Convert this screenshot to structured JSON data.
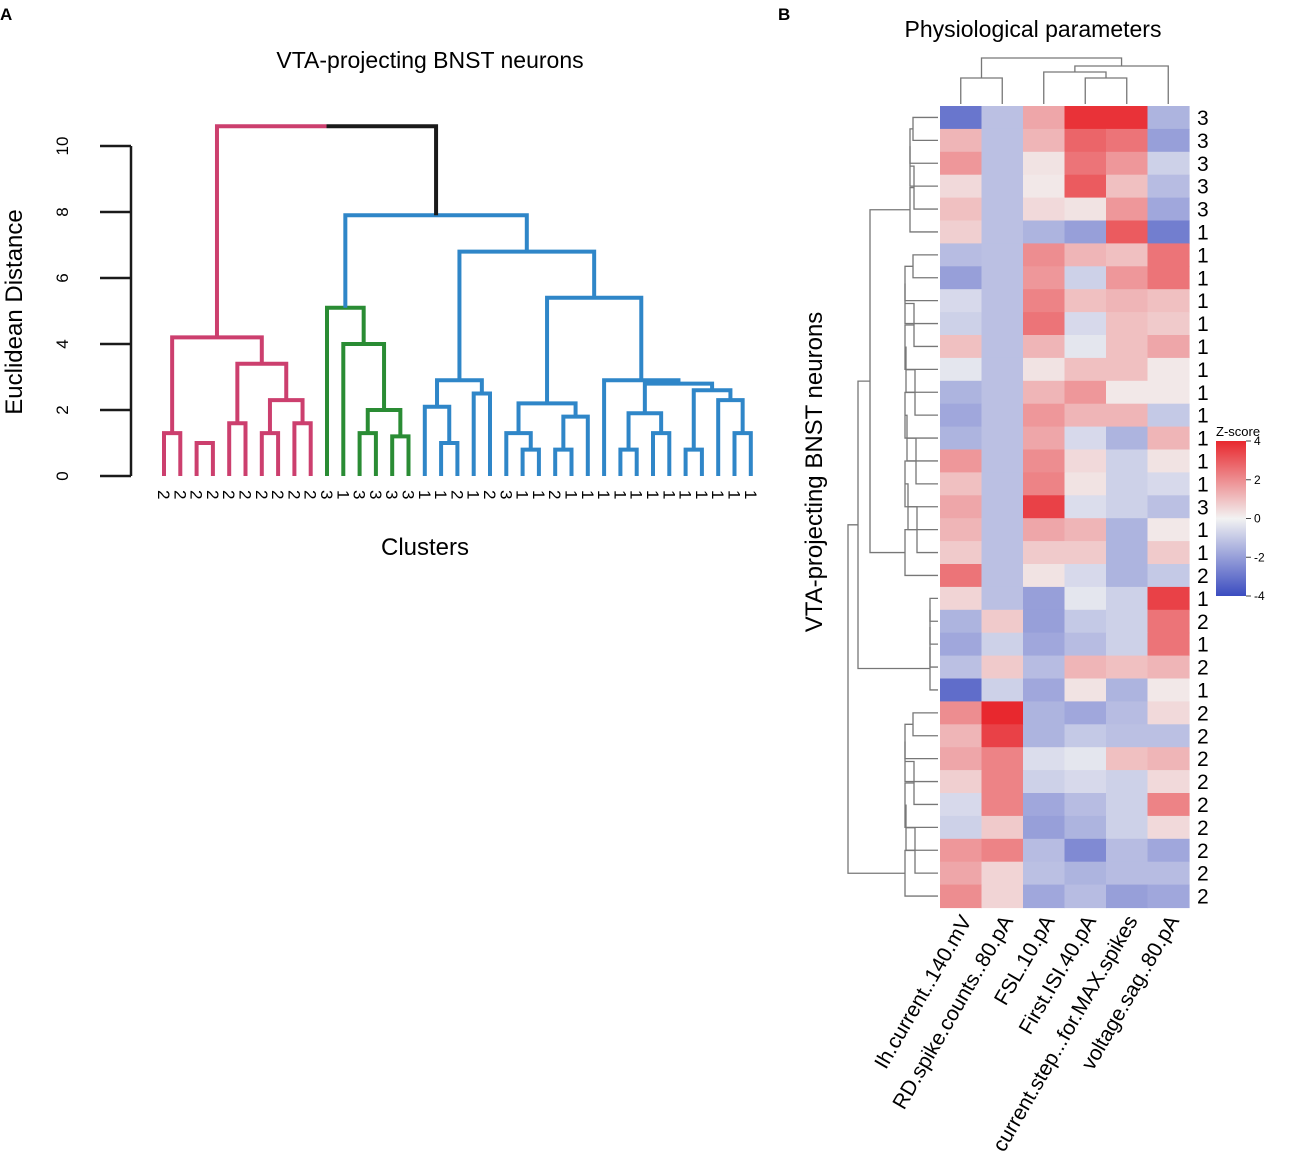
{
  "chart_data": [
    {
      "panel": "A",
      "type": "dendrogram",
      "title": "VTA-projecting BNST neurons",
      "xlabel": "Clusters",
      "ylabel": "Euclidean Distance",
      "ylim": [
        0,
        10
      ],
      "yticks": [
        0,
        2,
        4,
        6,
        8,
        10
      ],
      "colors": {
        "cluster_2": "#cc3f6e",
        "cluster_3": "#2a8c34",
        "cluster_1": "#2f86c8",
        "root": "#1a1a1a"
      },
      "leaves": [
        "2",
        "2",
        "2",
        "2",
        "2",
        "2",
        "2",
        "2",
        "2",
        "2",
        "3",
        "1",
        "3",
        "3",
        "3",
        "3",
        "1",
        "1",
        "2",
        "1",
        "2",
        "3",
        "1",
        "1",
        "2",
        "1",
        "1",
        "1",
        "1",
        "1",
        "1",
        "1",
        "1",
        "1",
        "1",
        "1",
        "1"
      ],
      "merges": [
        {
          "left": 0,
          "right": 1,
          "height": 1.3,
          "color": "cluster_2"
        },
        {
          "left": 2,
          "right": 3,
          "height": 1.0,
          "color": "cluster_2"
        },
        {
          "left": 4,
          "right": 5,
          "height": 1.6,
          "color": "cluster_2"
        },
        {
          "left": 6,
          "right": 7,
          "height": 1.3,
          "color": "cluster_2"
        },
        {
          "left": 8,
          "right": 9,
          "height": 1.6,
          "color": "cluster_2"
        },
        {
          "left": "n3",
          "right": "n4",
          "height": 2.3,
          "color": "cluster_2"
        },
        {
          "left": "n2",
          "right": "n5",
          "height": 3.4,
          "color": "cluster_2"
        },
        {
          "left": "n0",
          "right": "n6",
          "height": 4.2,
          "color": "cluster_2"
        },
        {
          "left": 12,
          "right": 13,
          "height": 1.3,
          "color": "cluster_3"
        },
        {
          "left": 14,
          "right": 15,
          "height": 1.2,
          "color": "cluster_3"
        },
        {
          "left": "n8",
          "right": "n9",
          "height": 2.0,
          "color": "cluster_3"
        },
        {
          "left": 11,
          "right": "n10",
          "height": 4.0,
          "color": "cluster_3"
        },
        {
          "left": 10,
          "right": "n11",
          "height": 5.1,
          "color": "cluster_3"
        },
        {
          "left": 17,
          "right": 18,
          "height": 1.0,
          "color": "cluster_1"
        },
        {
          "left": 16,
          "right": "n13",
          "height": 2.1,
          "color": "cluster_1"
        },
        {
          "left": 19,
          "right": 20,
          "height": 2.5,
          "color": "cluster_1"
        },
        {
          "left": "n14",
          "right": "n15",
          "height": 2.9,
          "color": "cluster_1"
        },
        {
          "left": 22,
          "right": 23,
          "height": 0.8,
          "color": "cluster_1"
        },
        {
          "left": 21,
          "right": "n17",
          "height": 1.3,
          "color": "cluster_1"
        },
        {
          "left": 24,
          "right": 25,
          "height": 0.8,
          "color": "cluster_1"
        },
        {
          "left": 26,
          "right": "n19",
          "height": 1.8,
          "color": "cluster_1"
        },
        {
          "left": "n18",
          "right": "n20",
          "height": 2.2,
          "color": "cluster_1"
        },
        {
          "left": 28,
          "right": 29,
          "height": 0.8,
          "color": "cluster_1"
        },
        {
          "left": 30,
          "right": 31,
          "height": 1.3,
          "color": "cluster_1"
        },
        {
          "left": "n22",
          "right": "n23",
          "height": 1.9,
          "color": "cluster_1"
        },
        {
          "left": 32,
          "right": 33,
          "height": 0.8,
          "color": "cluster_1"
        },
        {
          "left": 35,
          "right": 36,
          "height": 1.3,
          "color": "cluster_1"
        },
        {
          "left": 34,
          "right": "n26",
          "height": 2.3,
          "color": "cluster_1"
        },
        {
          "left": "n25",
          "right": "n27",
          "height": 2.6,
          "color": "cluster_1"
        },
        {
          "left": "n24",
          "right": "n28",
          "height": 2.8,
          "color": "cluster_1"
        },
        {
          "left": 27,
          "right": "n29",
          "height": 2.9,
          "color": "cluster_1"
        },
        {
          "left": "n21",
          "right": "n30",
          "height": 5.4,
          "color": "cluster_1"
        },
        {
          "left": "n16",
          "right": "n31",
          "height": 6.8,
          "color": "cluster_1"
        },
        {
          "left": "n12",
          "right": "n32",
          "height": 7.9,
          "color": "cluster_1"
        },
        {
          "left": "n7",
          "right": "n33",
          "height": 10.6,
          "color": "root"
        }
      ]
    },
    {
      "panel": "B",
      "type": "heatmap",
      "title": "Physiological parameters",
      "ylabel": "VTA-projecting BNST neurons",
      "columns": [
        "Ih.current..140.mV",
        "RD.spike.counts..80.pA",
        "FSL.10.pA",
        "First.ISI.40.pA",
        "current.step...for.MAX.spikes",
        "voltage.sag..80.pA"
      ],
      "row_labels": [
        "3",
        "3",
        "3",
        "3",
        "3",
        "1",
        "1",
        "1",
        "1",
        "1",
        "1",
        "1",
        "1",
        "1",
        "1",
        "1",
        "1",
        "3",
        "1",
        "1",
        "2",
        "1",
        "2",
        "1",
        "2",
        "1",
        "2",
        "2",
        "2",
        "2",
        "2",
        "2",
        "2",
        "2",
        "2"
      ],
      "values": [
        [
          -3.0,
          -1.2,
          1.5,
          3.8,
          3.8,
          -1.5
        ],
        [
          1.2,
          -1.2,
          1.2,
          2.8,
          2.5,
          -2.0
        ],
        [
          1.8,
          -1.2,
          0.3,
          2.5,
          1.8,
          -0.8
        ],
        [
          0.5,
          -1.2,
          0.2,
          3.0,
          1.0,
          -1.3
        ],
        [
          1.0,
          -1.2,
          0.5,
          0.3,
          1.8,
          -1.8
        ],
        [
          0.7,
          -1.2,
          -1.5,
          -2.0,
          3.0,
          -2.8
        ],
        [
          -1.3,
          -1.2,
          2.0,
          1.2,
          1.0,
          2.5
        ],
        [
          -2.0,
          -1.2,
          1.8,
          -0.8,
          1.8,
          2.5
        ],
        [
          -0.6,
          -1.2,
          2.2,
          1.0,
          1.2,
          1.0
        ],
        [
          -0.8,
          -1.2,
          2.5,
          -0.6,
          1.0,
          0.8
        ],
        [
          1.0,
          -1.2,
          1.2,
          -0.3,
          1.0,
          1.5
        ],
        [
          -0.3,
          -1.2,
          0.3,
          1.0,
          1.0,
          0.2
        ],
        [
          -1.5,
          -1.2,
          1.2,
          1.8,
          0.2,
          0.2
        ],
        [
          -1.8,
          -1.2,
          1.8,
          1.2,
          1.2,
          -1.0
        ],
        [
          -1.5,
          -1.2,
          1.5,
          -0.6,
          -1.5,
          1.2
        ],
        [
          1.8,
          -1.2,
          2.0,
          0.5,
          -0.8,
          0.3
        ],
        [
          1.0,
          -1.2,
          2.2,
          0.3,
          -0.8,
          -0.6
        ],
        [
          1.5,
          -1.2,
          3.5,
          -0.5,
          -0.8,
          -1.2
        ],
        [
          1.2,
          -1.2,
          1.5,
          1.2,
          -1.5,
          0.2
        ],
        [
          0.8,
          -1.2,
          0.8,
          0.8,
          -1.5,
          0.8
        ],
        [
          2.5,
          -1.2,
          0.3,
          -0.6,
          -1.5,
          -1.0
        ],
        [
          0.6,
          -1.2,
          -2.0,
          -0.3,
          -0.8,
          3.5
        ],
        [
          -1.5,
          0.8,
          -2.0,
          -1.0,
          -0.8,
          2.5
        ],
        [
          -1.8,
          -0.8,
          -1.8,
          -1.3,
          -0.8,
          2.5
        ],
        [
          -1.2,
          0.8,
          -1.3,
          1.2,
          1.0,
          1.2
        ],
        [
          -3.2,
          -0.8,
          -1.8,
          0.3,
          -1.5,
          0.2
        ],
        [
          2.0,
          4.0,
          -1.5,
          -1.8,
          -1.3,
          0.5
        ],
        [
          1.2,
          3.5,
          -1.5,
          -1.0,
          -1.2,
          -1.2
        ],
        [
          1.5,
          2.2,
          -0.5,
          -0.3,
          1.0,
          1.2
        ],
        [
          0.7,
          2.2,
          -0.8,
          -0.6,
          -0.8,
          0.5
        ],
        [
          -0.6,
          2.2,
          -1.8,
          -1.3,
          -0.8,
          2.2
        ],
        [
          -0.8,
          0.8,
          -2.0,
          -1.5,
          -0.8,
          0.5
        ],
        [
          1.8,
          2.2,
          -1.3,
          -2.5,
          -1.3,
          -1.8
        ],
        [
          1.5,
          0.6,
          -1.2,
          -1.5,
          -1.3,
          -1.3
        ],
        [
          2.0,
          0.6,
          -1.8,
          -1.3,
          -2.0,
          -1.8
        ]
      ],
      "legend": {
        "title": "Z-score",
        "range": [
          -4,
          4
        ],
        "ticks": [
          "4",
          "2",
          "0",
          "-2",
          "-4"
        ],
        "colors": {
          "low": "#3b4cc0",
          "mid": "#f2f2f2",
          "high": "#e8282e"
        }
      },
      "row_order_groups": [
        [
          "3",
          "3",
          "3",
          "3",
          "3",
          "1"
        ],
        [
          "1",
          "1",
          "1",
          "1",
          "1",
          "1",
          "1",
          "1",
          "1",
          "1",
          "1",
          "3",
          "1",
          "1",
          "2"
        ],
        [
          "1",
          "2",
          "1",
          "2",
          "1"
        ],
        [
          "2",
          "2",
          "2",
          "2",
          "2",
          "2",
          "2",
          "2",
          "2"
        ]
      ]
    }
  ],
  "panel_labels": {
    "a": "A",
    "b": "B"
  }
}
